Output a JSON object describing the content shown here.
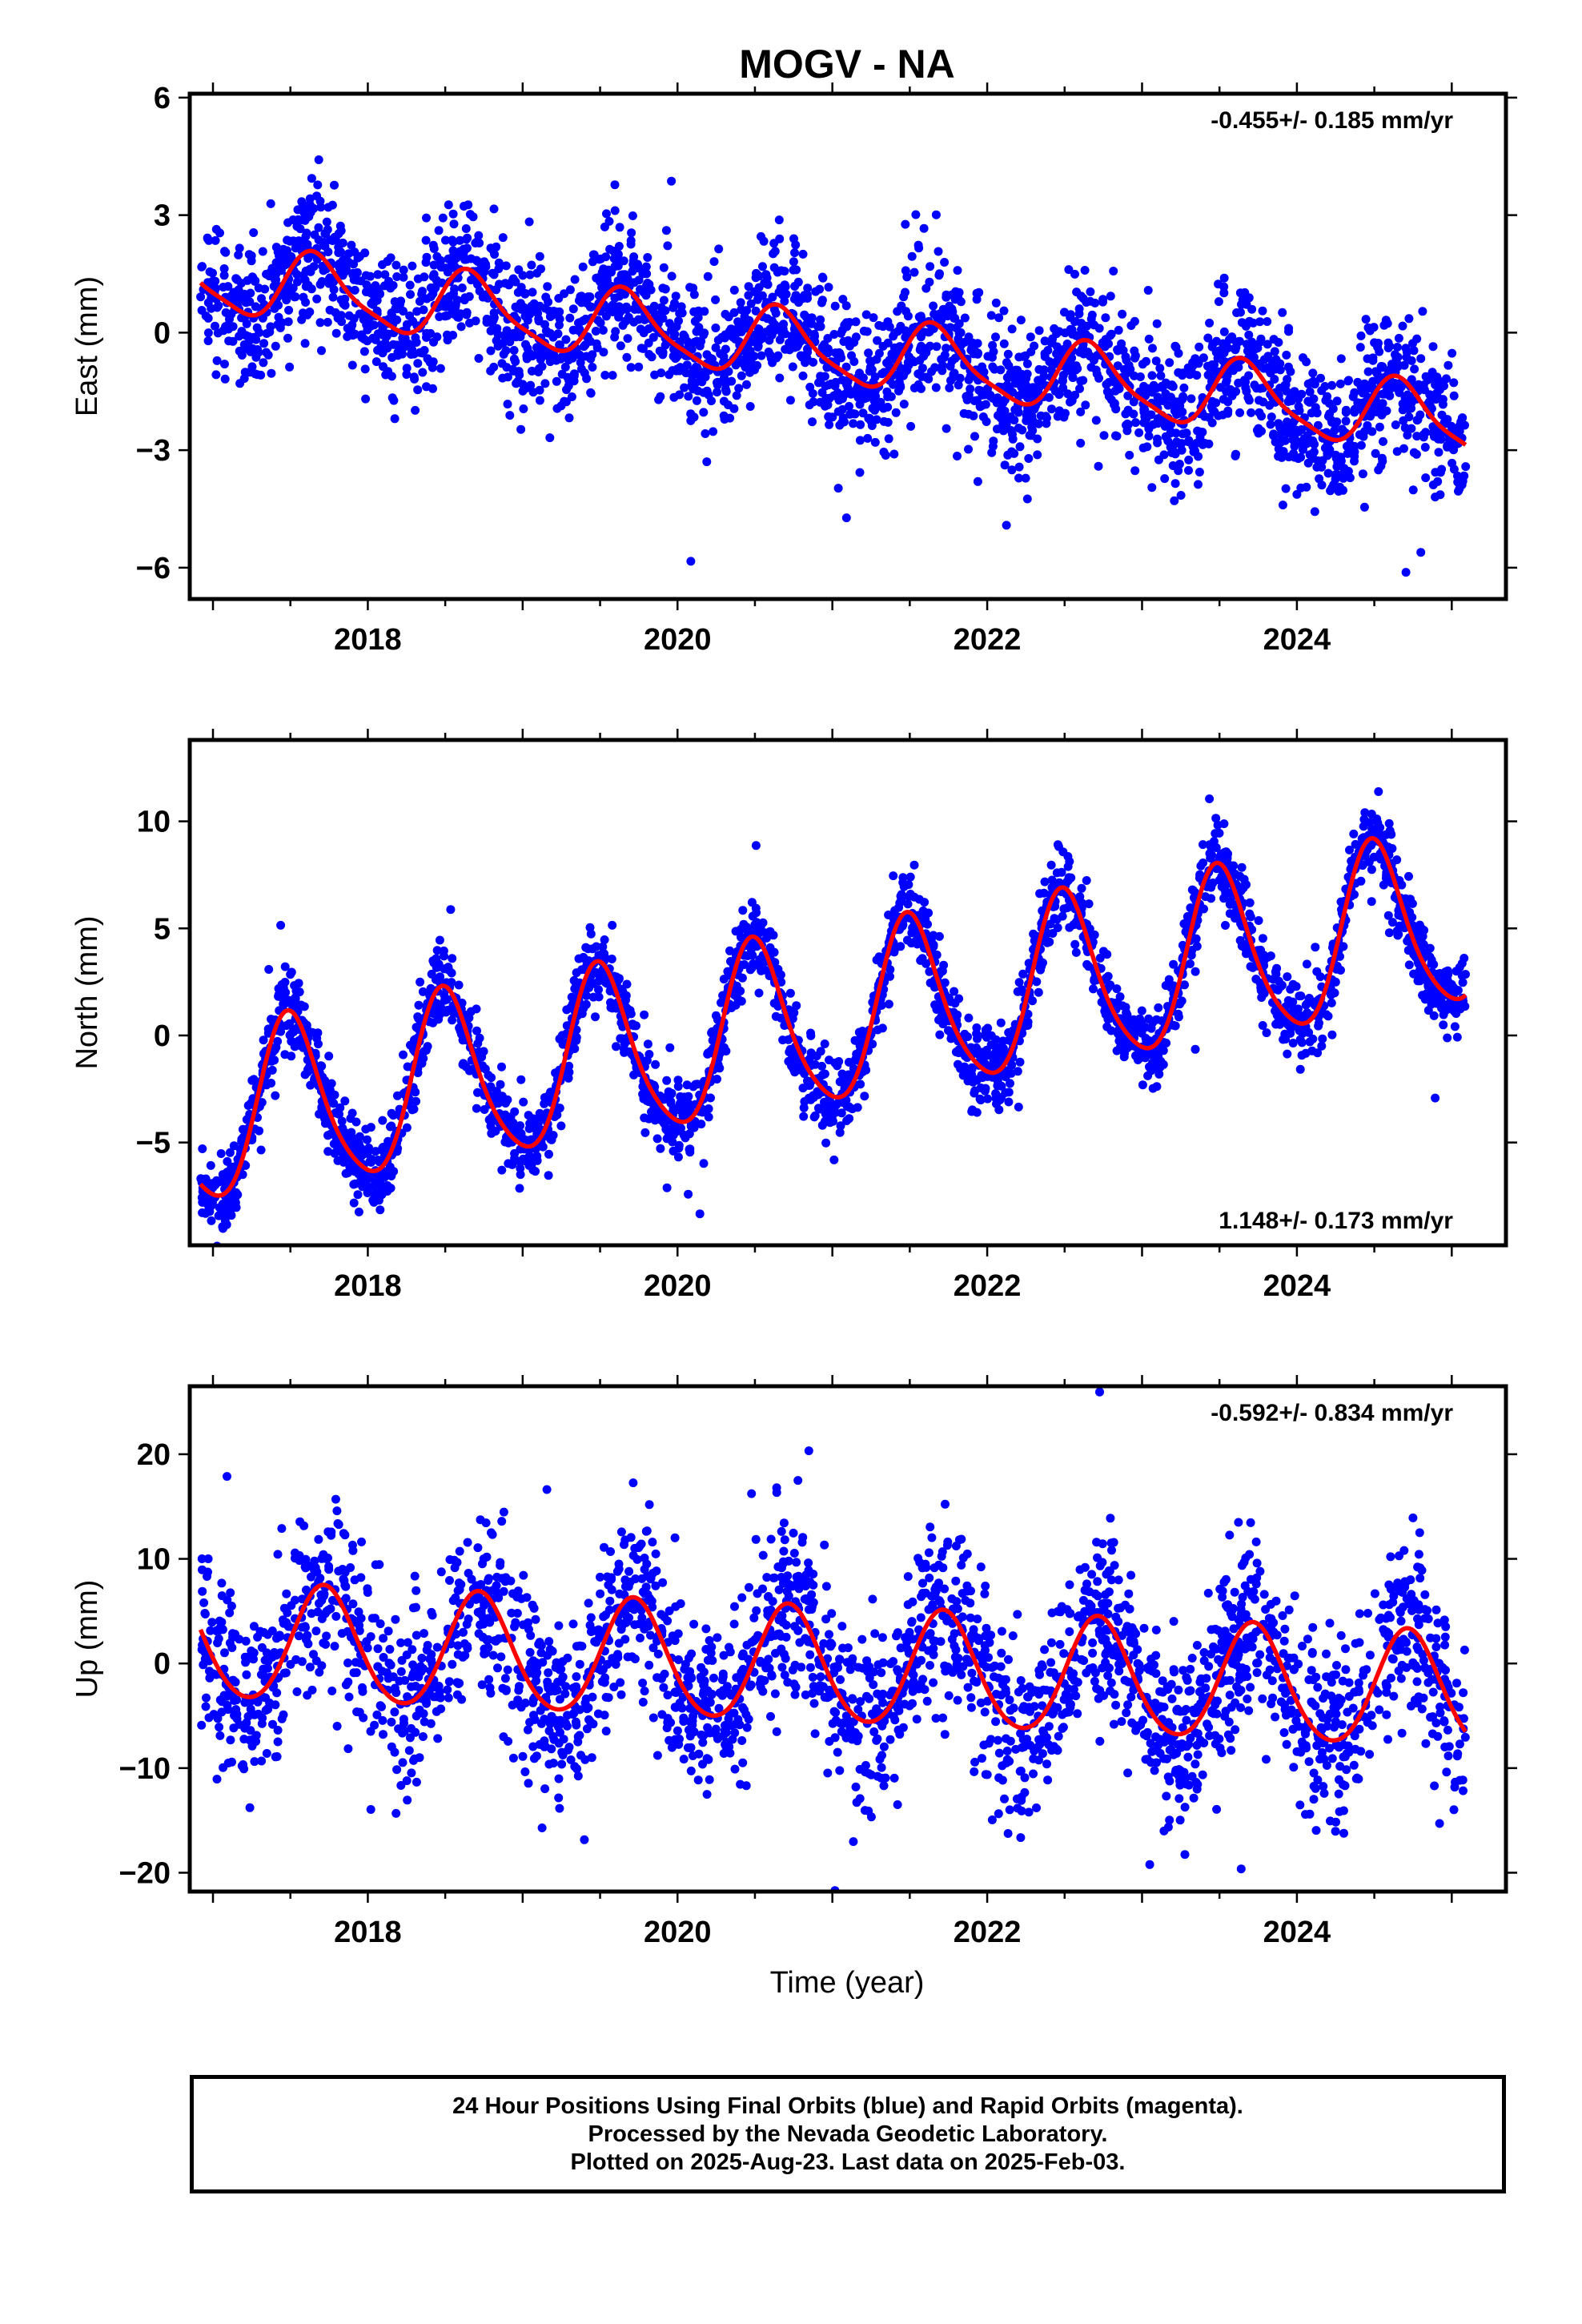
{
  "title": "MOGV - NA",
  "x_axis_label": "Time (year)",
  "footer_lines": [
    "24 Hour Positions Using Final Orbits (blue) and Rapid Orbits (magenta).",
    "Processed by the Nevada Geodetic Laboratory.",
    "Plotted on 2025-Aug-23. Last data on 2025-Feb-03."
  ],
  "colors": {
    "data_points": "#0000ff",
    "model_curve": "#ff0000",
    "frame": "#000000"
  },
  "chart_data": [
    {
      "type": "scatter",
      "component": "East",
      "ylabel": "East (mm)",
      "rate_label": "-0.455+/- 0.185 mm/yr",
      "rate_position": "top-right",
      "xlim": [
        2016.85,
        2025.35
      ],
      "ylim": [
        -6.8,
        6.1
      ],
      "xticks": [
        2018,
        2020,
        2022,
        2024
      ],
      "yticks": [
        -6,
        -3,
        0,
        3,
        6
      ],
      "ytick_labels": [
        "−6",
        "−3",
        "0",
        "3",
        "6"
      ],
      "data_span": [
        2016.92,
        2025.09
      ],
      "model": {
        "intercept": 1.4,
        "rate": -0.455,
        "annual_amp": 0.85,
        "annual_phase_year": 2017.67,
        "semiannual_amp": 0.2,
        "semiannual_phase_year": 2017.6,
        "noise_sd": 0.9,
        "n_points": 2900
      }
    },
    {
      "type": "scatter",
      "component": "North",
      "ylabel": "North (mm)",
      "rate_label": "1.148+/- 0.173 mm/yr",
      "rate_position": "bottom-right",
      "xlim": [
        2016.85,
        2025.35
      ],
      "ylim": [
        -9.8,
        13.8
      ],
      "xticks": [
        2018,
        2020,
        2022,
        2024
      ],
      "yticks": [
        -5,
        0,
        5,
        10
      ],
      "ytick_labels": [
        "−5",
        "0",
        "5",
        "10"
      ],
      "data_span": [
        2016.92,
        2025.09
      ],
      "model": {
        "intercept": -4.0,
        "rate": 1.148,
        "annual_amp": 4.0,
        "annual_phase_year": 2017.5,
        "semiannual_amp": 0.6,
        "semiannual_phase_year": 2017.45,
        "noise_sd": 0.9,
        "n_points": 2900
      }
    },
    {
      "type": "scatter",
      "component": "Up",
      "ylabel": "Up (mm)",
      "rate_label": "-0.592+/- 0.834 mm/yr",
      "rate_position": "top-right",
      "xlim": [
        2016.85,
        2025.35
      ],
      "ylim": [
        -21.8,
        26.5
      ],
      "xticks": [
        2018,
        2020,
        2022,
        2024
      ],
      "yticks": [
        -20,
        -10,
        0,
        10,
        20
      ],
      "ytick_labels": [
        "−20",
        "−10",
        "0",
        "10",
        "20"
      ],
      "data_span": [
        2016.92,
        2025.09
      ],
      "model": {
        "intercept": 2.0,
        "rate": -0.592,
        "annual_amp": 5.5,
        "annual_phase_year": 2017.72,
        "semiannual_amp": 0.5,
        "semiannual_phase_year": 2017.7,
        "noise_sd": 4.2,
        "n_points": 2600
      }
    }
  ]
}
